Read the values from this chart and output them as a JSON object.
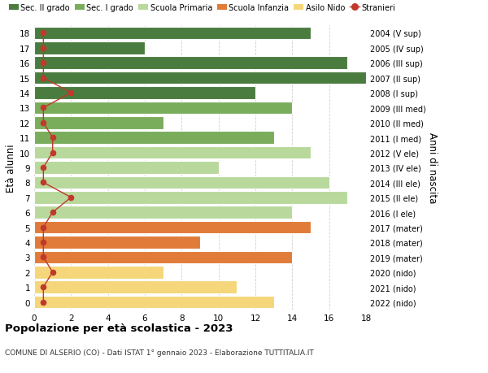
{
  "ages": [
    18,
    17,
    16,
    15,
    14,
    13,
    12,
    11,
    10,
    9,
    8,
    7,
    6,
    5,
    4,
    3,
    2,
    1,
    0
  ],
  "right_labels": [
    "2004 (V sup)",
    "2005 (IV sup)",
    "2006 (III sup)",
    "2007 (II sup)",
    "2008 (I sup)",
    "2009 (III med)",
    "2010 (II med)",
    "2011 (I med)",
    "2012 (V ele)",
    "2013 (IV ele)",
    "2014 (III ele)",
    "2015 (II ele)",
    "2016 (I ele)",
    "2017 (mater)",
    "2018 (mater)",
    "2019 (mater)",
    "2020 (nido)",
    "2021 (nido)",
    "2022 (nido)"
  ],
  "bar_values": [
    15,
    6,
    17,
    18,
    12,
    14,
    7,
    13,
    15,
    10,
    16,
    17,
    14,
    15,
    9,
    14,
    7,
    11,
    13
  ],
  "bar_colors": [
    "#4a7c3f",
    "#4a7c3f",
    "#4a7c3f",
    "#4a7c3f",
    "#4a7c3f",
    "#7aad5b",
    "#7aad5b",
    "#7aad5b",
    "#b8d89c",
    "#b8d89c",
    "#b8d89c",
    "#b8d89c",
    "#b8d89c",
    "#e07b39",
    "#e07b39",
    "#e07b39",
    "#f5d67a",
    "#f5d67a",
    "#f5d67a"
  ],
  "stranieri_x": [
    0.5,
    0.5,
    0.5,
    0.5,
    2,
    0.5,
    0.5,
    1,
    1,
    0.5,
    0.5,
    2,
    1,
    0.5,
    0.5,
    0.5,
    1,
    0.5,
    0.5
  ],
  "legend_labels": [
    "Sec. II grado",
    "Sec. I grado",
    "Scuola Primaria",
    "Scuola Infanzia",
    "Asilo Nido",
    "Stranieri"
  ],
  "legend_colors": [
    "#4a7c3f",
    "#7aad5b",
    "#b8d89c",
    "#e07b39",
    "#f5d67a",
    "#c0392b"
  ],
  "title": "Popolazione per età scolastica - 2023",
  "subtitle": "COMUNE DI ALSERIO (CO) - Dati ISTAT 1° gennaio 2023 - Elaborazione TUTTITALIA.IT",
  "ylabel_left": "Età alunni",
  "ylabel_right": "Anni di nascita",
  "xlim": [
    0,
    18
  ],
  "ylim": [
    -0.5,
    18.5
  ],
  "bg_color": "#ffffff",
  "grid_color": "#d0d0d0"
}
